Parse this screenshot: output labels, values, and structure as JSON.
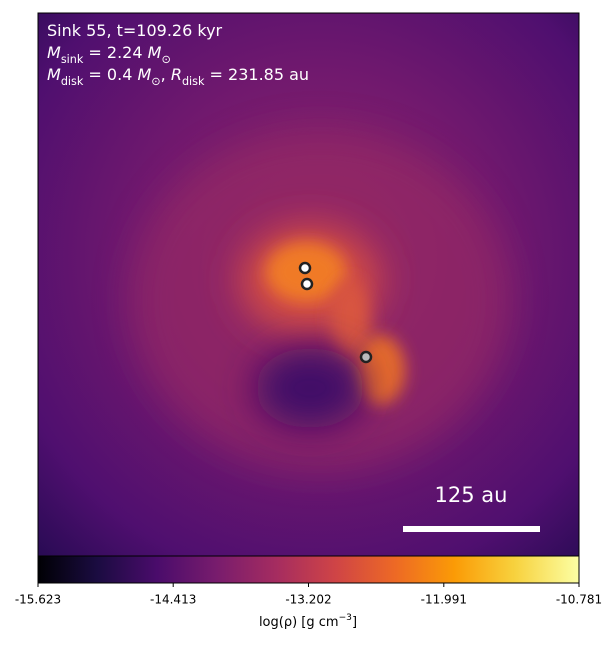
{
  "chart_data": {
    "type": "heatmap",
    "annotation_lines": [
      [
        {
          "text": "Sink 55, t=109.26 kyr"
        }
      ],
      [
        {
          "text": "M",
          "italic": true
        },
        {
          "text": "sink",
          "sub": true
        },
        {
          "text": " = 2.24 "
        },
        {
          "text": "M",
          "italic": true
        },
        {
          "text": "⊙",
          "sub": true
        }
      ],
      [
        {
          "text": "M",
          "italic": true
        },
        {
          "text": "disk",
          "sub": true
        },
        {
          "text": " = 0.4 "
        },
        {
          "text": "M",
          "italic": true
        },
        {
          "text": "⊙",
          "sub": true
        },
        {
          "text": ", "
        },
        {
          "text": "R",
          "italic": true
        },
        {
          "text": "disk",
          "sub": true
        },
        {
          "text": " = 231.85 au"
        }
      ]
    ],
    "scale_bar_label": "125 au",
    "colorbar_label": [
      {
        "text": "log(ρ) [g cm"
      },
      {
        "text": "−3",
        "sup": true
      },
      {
        "text": "]"
      }
    ],
    "clim": [
      -15.623,
      -10.781
    ],
    "cticks": [
      -15.623,
      -14.413,
      -13.202,
      -11.991,
      -10.781
    ]
  }
}
